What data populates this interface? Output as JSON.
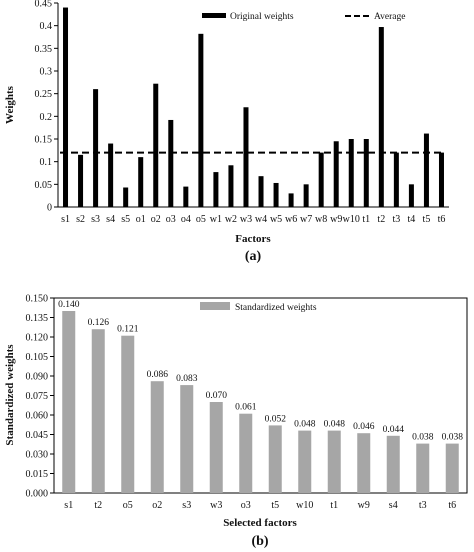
{
  "chart_data": [
    {
      "type": "bar",
      "panel_label": "(a)",
      "xlabel": "Factors",
      "ylabel": "Weights",
      "ylim": [
        0,
        0.45
      ],
      "yticks": [
        "0",
        "0.05",
        "0.1",
        "0.15",
        "0.2",
        "0.25",
        "0.3",
        "0.35",
        "0.4",
        "0.45"
      ],
      "categories": [
        "s1",
        "s2",
        "s3",
        "s4",
        "s5",
        "o1",
        "o2",
        "o3",
        "o4",
        "o5",
        "w1",
        "w2",
        "w3",
        "w4",
        "w5",
        "w6",
        "w7",
        "w8",
        "w9",
        "w10",
        "t1",
        "t2",
        "t3",
        "t4",
        "t5",
        "t6"
      ],
      "series": [
        {
          "name": "Original weights",
          "color": "#000000",
          "values": [
            0.44,
            0.115,
            0.26,
            0.14,
            0.043,
            0.11,
            0.272,
            0.192,
            0.045,
            0.382,
            0.077,
            0.092,
            0.22,
            0.068,
            0.053,
            0.03,
            0.05,
            0.12,
            0.145,
            0.15,
            0.15,
            0.397,
            0.12,
            0.05,
            0.162,
            0.12
          ]
        }
      ],
      "reference_line": {
        "name": "Average",
        "value": 0.12,
        "style": "dashed",
        "color": "#000000"
      },
      "legend_position": "top"
    },
    {
      "type": "bar",
      "panel_label": "(b)",
      "xlabel": "Selected factors",
      "ylabel": "Standardized weights",
      "ylim": [
        0,
        0.15
      ],
      "yticks": [
        "0.000",
        "0.015",
        "0.030",
        "0.045",
        "0.060",
        "0.075",
        "0.090",
        "0.105",
        "0.120",
        "0.135",
        "0.150"
      ],
      "categories": [
        "s1",
        "t2",
        "o5",
        "o2",
        "s3",
        "w3",
        "o3",
        "t5",
        "w10",
        "t1",
        "w9",
        "s4",
        "t3",
        "t6"
      ],
      "series": [
        {
          "name": "Standardized weights",
          "color": "#a6a6a6",
          "values": [
            0.14,
            0.126,
            0.121,
            0.086,
            0.083,
            0.07,
            0.061,
            0.052,
            0.048,
            0.048,
            0.046,
            0.044,
            0.038,
            0.038
          ],
          "data_labels": [
            "0.140",
            "0.126",
            "0.121",
            "0.086",
            "0.083",
            "0.070",
            "0.061",
            "0.052",
            "0.048",
            "0.048",
            "0.046",
            "0.044",
            "0.038",
            "0.038"
          ]
        }
      ],
      "legend_position": "top-center"
    }
  ]
}
